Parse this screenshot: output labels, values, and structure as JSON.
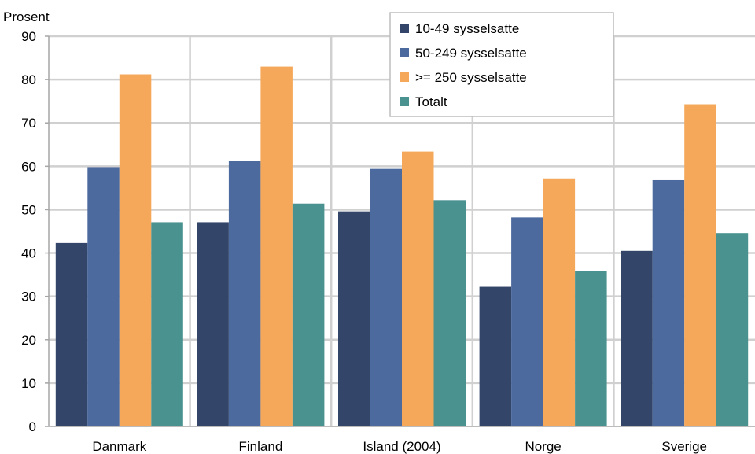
{
  "chart_data": {
    "type": "bar",
    "ylabel": "Prosent",
    "ylim": [
      0,
      90
    ],
    "yticks": [
      0,
      10,
      20,
      30,
      40,
      50,
      60,
      70,
      80,
      90
    ],
    "categories": [
      "Danmark",
      "Finland",
      "Island (2004)",
      "Norge",
      "Sverige"
    ],
    "series": [
      {
        "name": "10-49 sysselsatte",
        "color": "#33466a",
        "values": [
          42.3,
          47.1,
          49.6,
          32.2,
          40.5
        ]
      },
      {
        "name": "50-249 sysselsatte",
        "color": "#4d6a9e",
        "values": [
          59.8,
          61.2,
          59.4,
          48.2,
          56.8
        ]
      },
      {
        "name": ">= 250 sysselsatte",
        "color": "#f5a85a",
        "values": [
          81.2,
          83.0,
          63.4,
          57.2,
          74.3
        ]
      },
      {
        "name": "Totalt",
        "color": "#4a9290",
        "values": [
          47.1,
          51.4,
          52.2,
          35.8,
          44.6
        ]
      }
    ],
    "grid": true,
    "legend_position": "top-right"
  }
}
